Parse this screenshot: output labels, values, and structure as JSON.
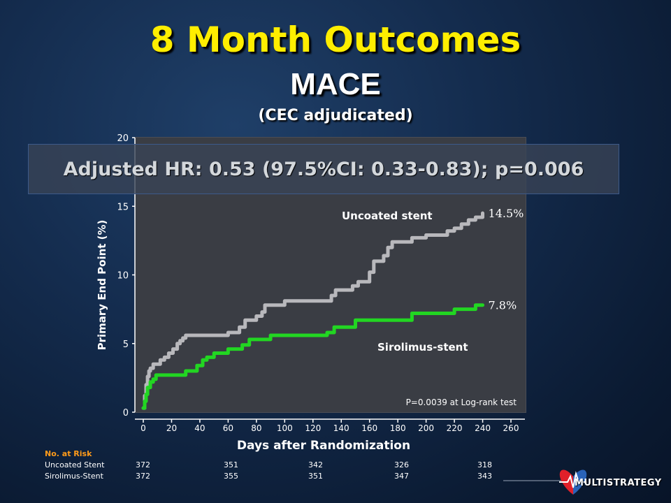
{
  "title": {
    "main": "8 Month Outcomes",
    "sub": "MACE",
    "note": "(CEC adjudicated)"
  },
  "hr_banner": "Adjusted HR: 0.53 (97.5%CI: 0.33-0.83); p=0.006",
  "chart_data": {
    "type": "line",
    "title": "",
    "xlabel": "Days after Randomization",
    "ylabel": "Primary End Point (%)",
    "xlim": [
      0,
      260
    ],
    "ylim": [
      0,
      20
    ],
    "xticks": [
      0,
      20,
      40,
      60,
      80,
      100,
      120,
      140,
      160,
      180,
      200,
      220,
      240,
      260
    ],
    "yticks": [
      0,
      5,
      10,
      15,
      20
    ],
    "grid": false,
    "series": [
      {
        "name": "Uncoated stent",
        "color": "#b8b8bc",
        "end_label": "14.5%",
        "x": [
          0,
          1,
          2,
          3,
          4,
          5,
          7,
          9,
          12,
          15,
          18,
          21,
          24,
          26,
          28,
          30,
          33,
          40,
          50,
          60,
          68,
          72,
          75,
          80,
          84,
          86,
          90,
          100,
          110,
          120,
          130,
          133,
          136,
          140,
          148,
          152,
          156,
          160,
          163,
          166,
          170,
          173,
          176,
          180,
          185,
          190,
          200,
          210,
          215,
          220,
          225,
          230,
          235,
          240
        ],
        "y": [
          0.3,
          1.2,
          2.0,
          2.6,
          3.0,
          3.2,
          3.5,
          3.5,
          3.8,
          4.0,
          4.3,
          4.6,
          5.0,
          5.2,
          5.4,
          5.6,
          5.6,
          5.6,
          5.6,
          5.8,
          6.2,
          6.7,
          6.7,
          7.0,
          7.3,
          7.8,
          7.8,
          8.1,
          8.1,
          8.1,
          8.1,
          8.5,
          8.9,
          8.9,
          9.2,
          9.5,
          9.5,
          10.2,
          11.0,
          11.0,
          11.4,
          12.0,
          12.4,
          12.4,
          12.4,
          12.7,
          12.9,
          12.9,
          13.2,
          13.4,
          13.7,
          14.0,
          14.2,
          14.5
        ]
      },
      {
        "name": "Sirolimus-stent",
        "color": "#22d622",
        "end_label": "7.8%",
        "x": [
          0,
          1,
          2,
          3,
          5,
          7,
          9,
          12,
          20,
          30,
          35,
          38,
          42,
          45,
          50,
          55,
          60,
          65,
          70,
          75,
          80,
          90,
          100,
          110,
          120,
          130,
          135,
          140,
          145,
          150,
          160,
          170,
          180,
          185,
          190,
          200,
          210,
          220,
          230,
          235,
          240
        ],
        "y": [
          0.3,
          0.8,
          1.3,
          1.8,
          2.2,
          2.4,
          2.7,
          2.7,
          2.7,
          3.0,
          3.0,
          3.4,
          3.8,
          4.0,
          4.3,
          4.3,
          4.6,
          4.6,
          4.9,
          5.3,
          5.3,
          5.6,
          5.6,
          5.6,
          5.6,
          5.8,
          6.2,
          6.2,
          6.2,
          6.7,
          6.7,
          6.7,
          6.7,
          6.7,
          7.2,
          7.2,
          7.2,
          7.5,
          7.5,
          7.8,
          7.8
        ]
      }
    ],
    "annotations": {
      "uncoated_label": "Uncoated stent",
      "sirolimus_label": "Sirolimus-stent",
      "pvalue": "P=0.0039 at Log-rank test"
    }
  },
  "risk_table": {
    "header": "No. at Risk",
    "rows": [
      {
        "label": "Uncoated Stent",
        "values": [
          "372",
          "351",
          "342",
          "326",
          "318"
        ]
      },
      {
        "label": "Sirolimus-Stent",
        "values": [
          "372",
          "355",
          "351",
          "347",
          "343"
        ]
      }
    ]
  },
  "logo": {
    "text": "MULTISTRATEGY",
    "colors": {
      "red": "#e0202a",
      "blue": "#2a63b8"
    }
  }
}
